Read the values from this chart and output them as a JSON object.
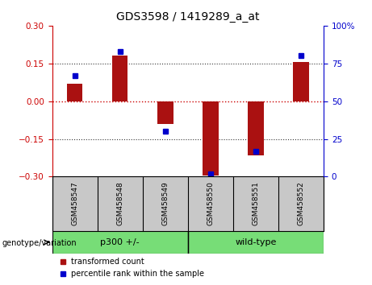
{
  "title": "GDS3598 / 1419289_a_at",
  "categories": [
    "GSM458547",
    "GSM458548",
    "GSM458549",
    "GSM458550",
    "GSM458551",
    "GSM458552"
  ],
  "red_bars": [
    0.07,
    0.18,
    -0.09,
    -0.295,
    -0.215,
    0.155
  ],
  "blue_dots_pct": [
    67,
    83,
    30,
    2,
    17,
    80
  ],
  "ylim_left": [
    -0.3,
    0.3
  ],
  "ylim_right": [
    0,
    100
  ],
  "yticks_left": [
    -0.3,
    -0.15,
    0,
    0.15,
    0.3
  ],
  "yticks_right": [
    0,
    25,
    50,
    75,
    100
  ],
  "bar_color": "#AA1111",
  "dot_color": "#0000CC",
  "zero_line_color": "#CC0000",
  "dotted_line_color": "#333333",
  "group_data": [
    {
      "label": "p300 +/-",
      "start": 0,
      "end": 2,
      "color": "#77DD77"
    },
    {
      "label": "wild-type",
      "start": 3,
      "end": 5,
      "color": "#77DD77"
    }
  ],
  "group_label": "genotype/variation",
  "legend_red": "transformed count",
  "legend_blue": "percentile rank within the sample",
  "label_bg": "#C8C8C8",
  "title_fontsize": 10,
  "label_fontsize": 6.5,
  "group_fontsize": 8,
  "tick_fontsize": 7.5,
  "bar_width": 0.35
}
